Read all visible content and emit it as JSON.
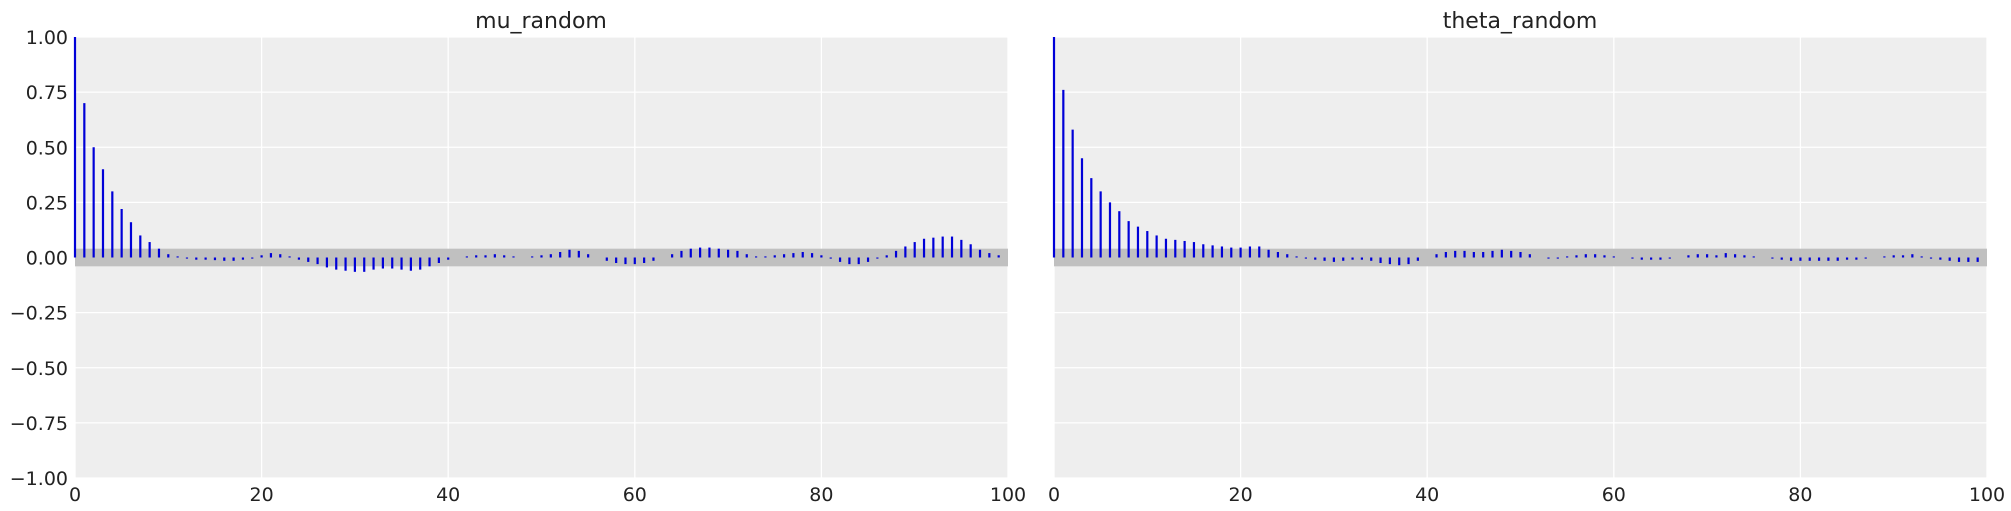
{
  "chart_data": [
    {
      "type": "bar",
      "title": "mu_random",
      "xlabel": "",
      "ylabel": "",
      "xlim": [
        0,
        100
      ],
      "ylim": [
        -1.0,
        1.0
      ],
      "xticks": [
        0,
        20,
        40,
        60,
        80,
        100
      ],
      "xtick_labels": [
        "0",
        "20",
        "40",
        "60",
        "80",
        "100"
      ],
      "yticks": [
        1.0,
        0.75,
        0.5,
        0.25,
        0.0,
        -0.25,
        -0.5,
        -0.75,
        -1.0
      ],
      "ytick_labels": [
        "1.00",
        "0.75",
        "0.50",
        "0.25",
        "0.00",
        "−0.25",
        "−0.50",
        "−0.75",
        "−1.00"
      ],
      "confidence_band": [
        -0.04,
        0.04
      ],
      "grid": true,
      "bar_color": "#0000d8",
      "band_color": "#c0c0c0",
      "background_color": "#eeeeee",
      "lags": [
        0,
        1,
        2,
        3,
        4,
        5,
        6,
        7,
        8,
        9,
        10,
        11,
        12,
        13,
        14,
        15,
        16,
        17,
        18,
        19,
        20,
        21,
        22,
        23,
        24,
        25,
        26,
        27,
        28,
        29,
        30,
        31,
        32,
        33,
        34,
        35,
        36,
        37,
        38,
        39,
        40,
        41,
        42,
        43,
        44,
        45,
        46,
        47,
        48,
        49,
        50,
        51,
        52,
        53,
        54,
        55,
        56,
        57,
        58,
        59,
        60,
        61,
        62,
        63,
        64,
        65,
        66,
        67,
        68,
        69,
        70,
        71,
        72,
        73,
        74,
        75,
        76,
        77,
        78,
        79,
        80,
        81,
        82,
        83,
        84,
        85,
        86,
        87,
        88,
        89,
        90,
        91,
        92,
        93,
        94,
        95,
        96,
        97,
        98,
        99
      ],
      "values": [
        1.0,
        0.7,
        0.5,
        0.4,
        0.3,
        0.22,
        0.16,
        0.1,
        0.07,
        0.04,
        0.015,
        0.005,
        -0.005,
        -0.01,
        -0.01,
        -0.012,
        -0.015,
        -0.015,
        -0.01,
        -0.005,
        0.01,
        0.02,
        0.015,
        0.005,
        -0.01,
        -0.02,
        -0.03,
        -0.045,
        -0.055,
        -0.06,
        -0.065,
        -0.065,
        -0.055,
        -0.05,
        -0.05,
        -0.055,
        -0.06,
        -0.055,
        -0.04,
        -0.025,
        -0.01,
        0.0,
        0.005,
        0.01,
        0.01,
        0.015,
        0.01,
        0.005,
        0.0,
        0.005,
        0.01,
        0.015,
        0.025,
        0.035,
        0.03,
        0.015,
        0.0,
        -0.015,
        -0.025,
        -0.03,
        -0.03,
        -0.025,
        -0.015,
        0.0,
        0.015,
        0.03,
        0.04,
        0.045,
        0.045,
        0.04,
        0.035,
        0.03,
        0.015,
        0.005,
        0.005,
        0.01,
        0.015,
        0.02,
        0.025,
        0.02,
        0.01,
        -0.005,
        -0.02,
        -0.03,
        -0.03,
        -0.02,
        -0.005,
        0.01,
        0.03,
        0.05,
        0.07,
        0.085,
        0.09,
        0.095,
        0.095,
        0.08,
        0.06,
        0.035,
        0.02,
        0.01
      ]
    },
    {
      "type": "bar",
      "title": "theta_random",
      "xlabel": "",
      "ylabel": "",
      "xlim": [
        0,
        100
      ],
      "ylim": [
        -1.0,
        1.0
      ],
      "xticks": [
        0,
        20,
        40,
        60,
        80,
        100
      ],
      "xtick_labels": [
        "0",
        "20",
        "40",
        "60",
        "80",
        "100"
      ],
      "yticks": [
        1.0,
        0.75,
        0.5,
        0.25,
        0.0,
        -0.25,
        -0.5,
        -0.75,
        -1.0
      ],
      "ytick_labels": [],
      "confidence_band": [
        -0.04,
        0.04
      ],
      "grid": true,
      "bar_color": "#0000d8",
      "band_color": "#c0c0c0",
      "background_color": "#eeeeee",
      "lags": [
        0,
        1,
        2,
        3,
        4,
        5,
        6,
        7,
        8,
        9,
        10,
        11,
        12,
        13,
        14,
        15,
        16,
        17,
        18,
        19,
        20,
        21,
        22,
        23,
        24,
        25,
        26,
        27,
        28,
        29,
        30,
        31,
        32,
        33,
        34,
        35,
        36,
        37,
        38,
        39,
        40,
        41,
        42,
        43,
        44,
        45,
        46,
        47,
        48,
        49,
        50,
        51,
        52,
        53,
        54,
        55,
        56,
        57,
        58,
        59,
        60,
        61,
        62,
        63,
        64,
        65,
        66,
        67,
        68,
        69,
        70,
        71,
        72,
        73,
        74,
        75,
        76,
        77,
        78,
        79,
        80,
        81,
        82,
        83,
        84,
        85,
        86,
        87,
        88,
        89,
        90,
        91,
        92,
        93,
        94,
        95,
        96,
        97,
        98,
        99
      ],
      "values": [
        1.0,
        0.76,
        0.58,
        0.45,
        0.36,
        0.3,
        0.25,
        0.21,
        0.165,
        0.14,
        0.12,
        0.1,
        0.085,
        0.08,
        0.075,
        0.07,
        0.06,
        0.055,
        0.05,
        0.045,
        0.045,
        0.05,
        0.05,
        0.035,
        0.025,
        0.015,
        0.005,
        -0.005,
        -0.01,
        -0.015,
        -0.02,
        -0.015,
        -0.01,
        -0.01,
        -0.015,
        -0.025,
        -0.03,
        -0.035,
        -0.03,
        -0.015,
        0.0,
        0.015,
        0.025,
        0.03,
        0.03,
        0.025,
        0.025,
        0.03,
        0.035,
        0.03,
        0.025,
        0.015,
        0.0,
        -0.005,
        -0.005,
        0.005,
        0.01,
        0.015,
        0.015,
        0.01,
        0.005,
        0.0,
        -0.005,
        -0.01,
        -0.01,
        -0.01,
        -0.005,
        0.0,
        0.01,
        0.015,
        0.015,
        0.01,
        0.02,
        0.015,
        0.01,
        0.005,
        0.0,
        -0.005,
        -0.01,
        -0.015,
        -0.015,
        -0.015,
        -0.015,
        -0.015,
        -0.015,
        -0.01,
        -0.01,
        -0.005,
        0.0,
        0.005,
        0.01,
        0.01,
        0.015,
        0.005,
        -0.005,
        -0.01,
        -0.015,
        -0.02,
        -0.02,
        -0.02
      ]
    }
  ]
}
